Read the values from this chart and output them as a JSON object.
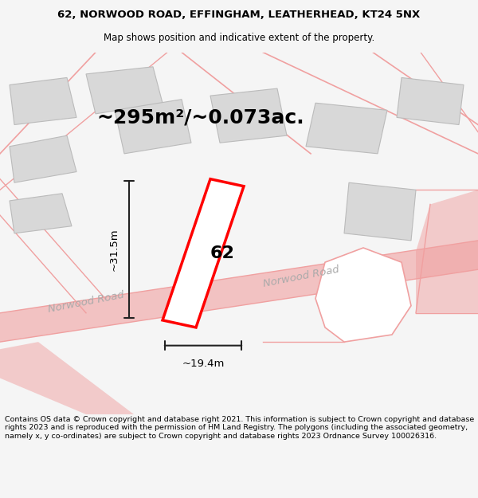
{
  "title_line1": "62, NORWOOD ROAD, EFFINGHAM, LEATHERHEAD, KT24 5NX",
  "title_line2": "Map shows position and indicative extent of the property.",
  "area_text": "~295m²/~0.073ac.",
  "label_62": "62",
  "dim_height": "~31.5m",
  "dim_width": "~19.4m",
  "road_label1": "Norwood Road",
  "road_label2": "Norwood Road",
  "footer_text": "Contains OS data © Crown copyright and database right 2021. This information is subject to Crown copyright and database rights 2023 and is reproduced with the permission of HM Land Registry. The polygons (including the associated geometry, namely x, y co-ordinates) are subject to Crown copyright and database rights 2023 Ordnance Survey 100026316.",
  "bg_color": "#f5f5f5",
  "map_bg": "#ffffff",
  "road_color": "#f0a0a0",
  "building_fill": "#d8d8d8",
  "building_edge": "#bbbbbb",
  "highlight_fill": "#ffffff",
  "highlight_edge": "#ff0000",
  "dim_line_color": "#222222",
  "title_fontsize": 9.5,
  "subtitle_fontsize": 8.5,
  "area_fontsize": 18,
  "label_fontsize": 16,
  "dim_fontsize": 9.5,
  "road_fontsize": 9.5,
  "footer_fontsize": 6.8
}
